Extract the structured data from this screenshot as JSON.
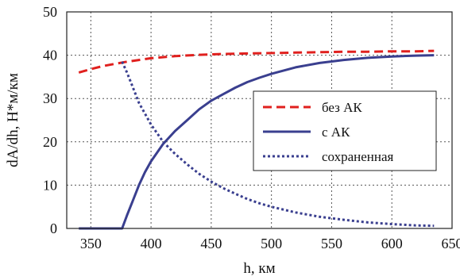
{
  "chart_data": {
    "type": "line",
    "title": "",
    "xlabel": "h, км",
    "ylabel": "dA/dh, Н*м/км",
    "xlim": [
      330,
      650
    ],
    "ylim": [
      0,
      50
    ],
    "xticks": [
      350,
      400,
      450,
      500,
      550,
      600,
      650
    ],
    "yticks": [
      0,
      10,
      20,
      30,
      40,
      50
    ],
    "grid": true,
    "legend_position": "right",
    "series": [
      {
        "name": "без АК",
        "style": "dashed",
        "color": "#e0201e",
        "x": [
          340,
          350,
          360,
          370,
          380,
          390,
          400,
          420,
          440,
          460,
          480,
          500,
          520,
          540,
          560,
          580,
          600,
          620,
          635
        ],
        "y": [
          36,
          36.8,
          37.5,
          38.0,
          38.5,
          38.9,
          39.3,
          39.8,
          40.1,
          40.3,
          40.4,
          40.5,
          40.6,
          40.7,
          40.8,
          40.8,
          40.9,
          40.9,
          41
        ]
      },
      {
        "name": "с АК",
        "style": "solid",
        "color": "#3a3f8f",
        "x": [
          340,
          360,
          376,
          380,
          385,
          390,
          395,
          400,
          410,
          420,
          430,
          440,
          450,
          460,
          470,
          480,
          490,
          500,
          520,
          540,
          560,
          580,
          600,
          620,
          635
        ],
        "y": [
          0,
          0,
          0,
          3,
          6.5,
          10,
          13,
          15.5,
          19.5,
          22.5,
          25,
          27.5,
          29.5,
          31,
          32.5,
          33.8,
          34.8,
          35.7,
          37.2,
          38.2,
          38.9,
          39.4,
          39.7,
          39.9,
          40
        ]
      },
      {
        "name": "сохраненная",
        "style": "dotted",
        "color": "#3a3f8f",
        "x": [
          376,
          380,
          385,
          390,
          395,
          400,
          410,
          420,
          430,
          440,
          450,
          460,
          470,
          480,
          490,
          500,
          520,
          540,
          560,
          580,
          600,
          620,
          635
        ],
        "y": [
          38.5,
          36,
          32.5,
          29,
          26.5,
          24,
          20,
          17.2,
          14.8,
          12.6,
          10.8,
          9.3,
          8,
          6.8,
          5.8,
          5,
          3.7,
          2.7,
          2,
          1.4,
          1,
          0.7,
          0.6
        ]
      }
    ]
  }
}
